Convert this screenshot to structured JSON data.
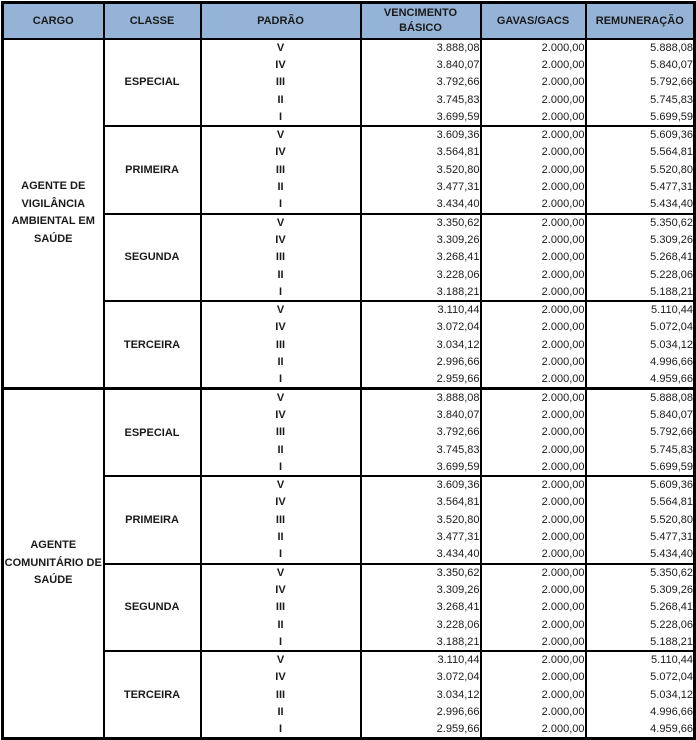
{
  "colors": {
    "header_bg": "#95B3D7",
    "border": "#000000",
    "text": "#1a1a1a"
  },
  "table": {
    "headers": [
      "CARGO",
      "CLASSE",
      "PADRÃO",
      "VENCIMENTO BÁSICO",
      "GAVAS/GACS",
      "REMUNERAÇÃO"
    ],
    "header_keys": [
      "cargo",
      "classe",
      "padrao",
      "vencimento-basico",
      "gavas-gacs",
      "remuneracao"
    ],
    "cargos": [
      {
        "name": "AGENTE DE VIGILÂNCIA AMBIENTAL EM SAÚDE",
        "classes": [
          {
            "name": "ESPECIAL",
            "rows": [
              {
                "padrao": "V",
                "vencimento": "3.888,08",
                "gavas": "2.000,00",
                "remuneracao": "5.888,08"
              },
              {
                "padrao": "IV",
                "vencimento": "3.840,07",
                "gavas": "2.000,00",
                "remuneracao": "5.840,07"
              },
              {
                "padrao": "III",
                "vencimento": "3.792,66",
                "gavas": "2.000,00",
                "remuneracao": "5.792,66"
              },
              {
                "padrao": "II",
                "vencimento": "3.745,83",
                "gavas": "2.000,00",
                "remuneracao": "5.745,83"
              },
              {
                "padrao": "I",
                "vencimento": "3.699,59",
                "gavas": "2.000,00",
                "remuneracao": "5.699,59"
              }
            ]
          },
          {
            "name": "PRIMEIRA",
            "rows": [
              {
                "padrao": "V",
                "vencimento": "3.609,36",
                "gavas": "2.000,00",
                "remuneracao": "5.609,36"
              },
              {
                "padrao": "IV",
                "vencimento": "3.564,81",
                "gavas": "2.000,00",
                "remuneracao": "5.564,81"
              },
              {
                "padrao": "III",
                "vencimento": "3.520,80",
                "gavas": "2.000,00",
                "remuneracao": "5.520,80"
              },
              {
                "padrao": "II",
                "vencimento": "3.477,31",
                "gavas": "2.000,00",
                "remuneracao": "5.477,31"
              },
              {
                "padrao": "I",
                "vencimento": "3.434,40",
                "gavas": "2.000,00",
                "remuneracao": "5.434,40"
              }
            ]
          },
          {
            "name": "SEGUNDA",
            "rows": [
              {
                "padrao": "V",
                "vencimento": "3.350,62",
                "gavas": "2.000,00",
                "remuneracao": "5.350,62"
              },
              {
                "padrao": "IV",
                "vencimento": "3.309,26",
                "gavas": "2.000,00",
                "remuneracao": "5.309,26"
              },
              {
                "padrao": "III",
                "vencimento": "3.268,41",
                "gavas": "2.000,00",
                "remuneracao": "5.268,41"
              },
              {
                "padrao": "II",
                "vencimento": "3.228,06",
                "gavas": "2.000,00",
                "remuneracao": "5.228,06"
              },
              {
                "padrao": "I",
                "vencimento": "3.188,21",
                "gavas": "2.000,00",
                "remuneracao": "5.188,21"
              }
            ]
          },
          {
            "name": "TERCEIRA",
            "rows": [
              {
                "padrao": "V",
                "vencimento": "3.110,44",
                "gavas": "2.000,00",
                "remuneracao": "5.110,44"
              },
              {
                "padrao": "IV",
                "vencimento": "3.072,04",
                "gavas": "2.000,00",
                "remuneracao": "5.072,04"
              },
              {
                "padrao": "III",
                "vencimento": "3.034,12",
                "gavas": "2.000,00",
                "remuneracao": "5.034,12"
              },
              {
                "padrao": "II",
                "vencimento": "2.996,66",
                "gavas": "2.000,00",
                "remuneracao": "4.996,66"
              },
              {
                "padrao": "I",
                "vencimento": "2.959,66",
                "gavas": "2.000,00",
                "remuneracao": "4.959,66"
              }
            ]
          }
        ]
      },
      {
        "name": "AGENTE COMUNITÁRIO DE SAÚDE",
        "classes": [
          {
            "name": "ESPECIAL",
            "rows": [
              {
                "padrao": "V",
                "vencimento": "3.888,08",
                "gavas": "2.000,00",
                "remuneracao": "5.888,08"
              },
              {
                "padrao": "IV",
                "vencimento": "3.840,07",
                "gavas": "2.000,00",
                "remuneracao": "5.840,07"
              },
              {
                "padrao": "III",
                "vencimento": "3.792,66",
                "gavas": "2.000,00",
                "remuneracao": "5.792,66"
              },
              {
                "padrao": "II",
                "vencimento": "3.745,83",
                "gavas": "2.000,00",
                "remuneracao": "5.745,83"
              },
              {
                "padrao": "I",
                "vencimento": "3.699,59",
                "gavas": "2.000,00",
                "remuneracao": "5.699,59"
              }
            ]
          },
          {
            "name": "PRIMEIRA",
            "rows": [
              {
                "padrao": "V",
                "vencimento": "3.609,36",
                "gavas": "2.000,00",
                "remuneracao": "5.609,36"
              },
              {
                "padrao": "IV",
                "vencimento": "3.564,81",
                "gavas": "2.000,00",
                "remuneracao": "5.564,81"
              },
              {
                "padrao": "III",
                "vencimento": "3.520,80",
                "gavas": "2.000,00",
                "remuneracao": "5.520,80"
              },
              {
                "padrao": "II",
                "vencimento": "3.477,31",
                "gavas": "2.000,00",
                "remuneracao": "5.477,31"
              },
              {
                "padrao": "I",
                "vencimento": "3.434,40",
                "gavas": "2.000,00",
                "remuneracao": "5.434,40"
              }
            ]
          },
          {
            "name": "SEGUNDA",
            "rows": [
              {
                "padrao": "V",
                "vencimento": "3.350,62",
                "gavas": "2.000,00",
                "remuneracao": "5.350,62"
              },
              {
                "padrao": "IV",
                "vencimento": "3.309,26",
                "gavas": "2.000,00",
                "remuneracao": "5.309,26"
              },
              {
                "padrao": "III",
                "vencimento": "3.268,41",
                "gavas": "2.000,00",
                "remuneracao": "5.268,41"
              },
              {
                "padrao": "II",
                "vencimento": "3.228,06",
                "gavas": "2.000,00",
                "remuneracao": "5.228,06"
              },
              {
                "padrao": "I",
                "vencimento": "3.188,21",
                "gavas": "2.000,00",
                "remuneracao": "5.188,21"
              }
            ]
          },
          {
            "name": "TERCEIRA",
            "rows": [
              {
                "padrao": "V",
                "vencimento": "3.110,44",
                "gavas": "2.000,00",
                "remuneracao": "5.110,44"
              },
              {
                "padrao": "IV",
                "vencimento": "3.072,04",
                "gavas": "2.000,00",
                "remuneracao": "5.072,04"
              },
              {
                "padrao": "III",
                "vencimento": "3.034,12",
                "gavas": "2.000,00",
                "remuneracao": "5.034,12"
              },
              {
                "padrao": "II",
                "vencimento": "2.996,66",
                "gavas": "2.000,00",
                "remuneracao": "4.996,66"
              },
              {
                "padrao": "I",
                "vencimento": "2.959,66",
                "gavas": "2.000,00",
                "remuneracao": "4.959,66"
              }
            ]
          }
        ]
      }
    ]
  }
}
